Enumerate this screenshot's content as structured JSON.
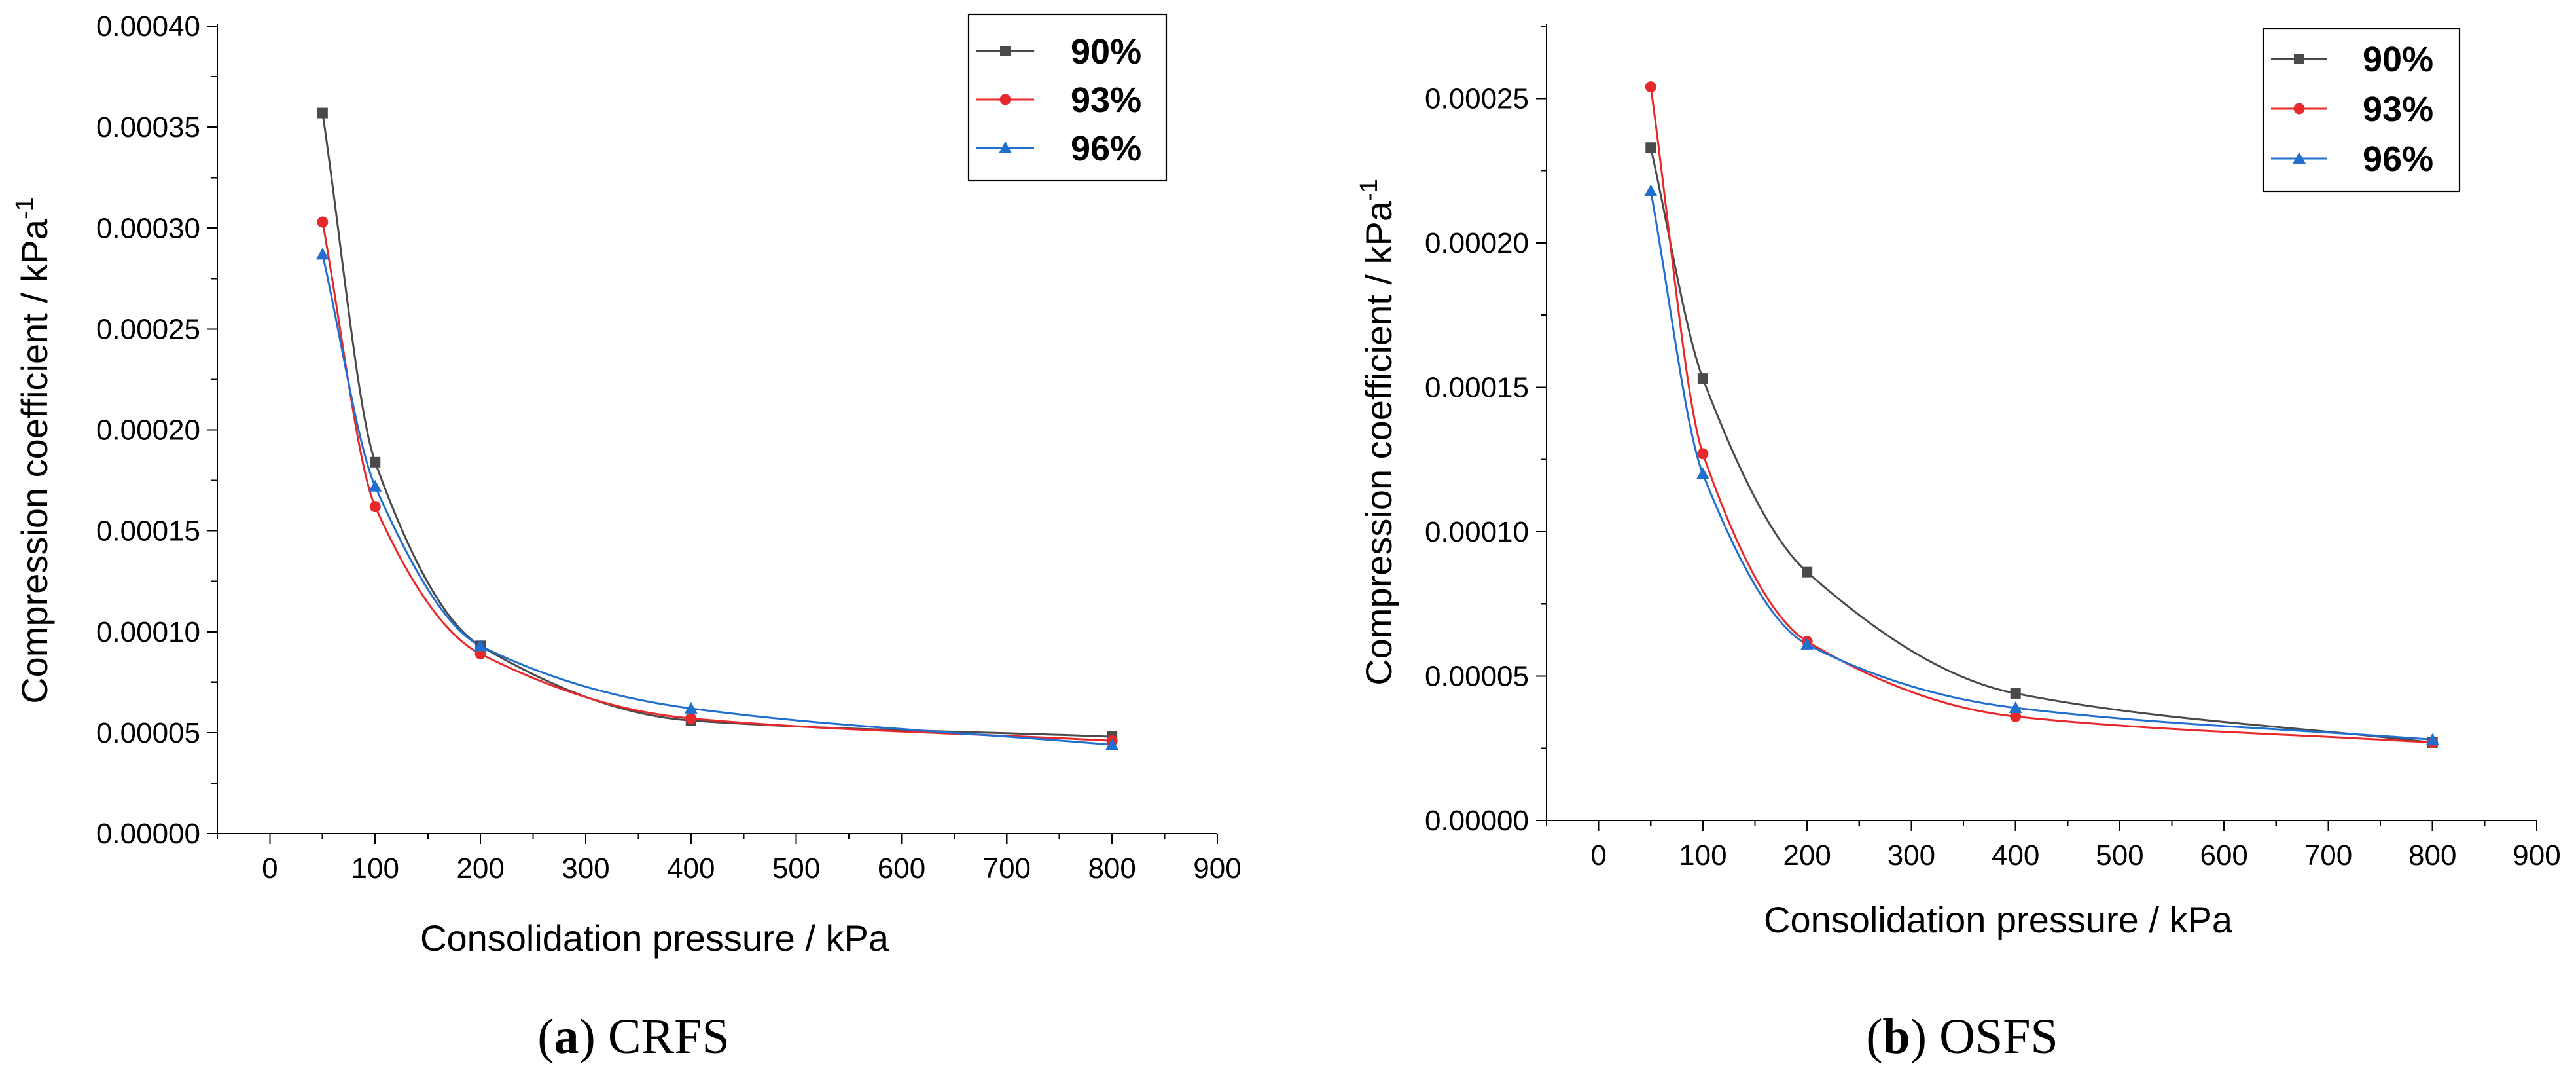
{
  "chart_data": [
    {
      "type": "line",
      "panel_id": "a",
      "caption_letter": "a",
      "caption_text": "CRFS",
      "xlabel": "Consolidation pressure / kPa",
      "ylabel": "Compression coefficient / kPa",
      "ylabel_superscript": "-1",
      "xlim": [
        -50,
        900
      ],
      "ylim": [
        0,
        0.0004
      ],
      "xticks": [
        0,
        100,
        200,
        300,
        400,
        500,
        600,
        700,
        800,
        900
      ],
      "xtick_labels": [
        "0",
        "100",
        "200",
        "300",
        "400",
        "500",
        "600",
        "700",
        "800",
        "900"
      ],
      "yticks": [
        0,
        5e-05,
        0.0001,
        0.00015,
        0.0002,
        0.00025,
        0.0003,
        0.00035,
        0.0004
      ],
      "ytick_labels": [
        "0.00000",
        "0.00005",
        "0.00010",
        "0.00015",
        "0.00020",
        "0.00025",
        "0.00030",
        "0.00035",
        "0.00040"
      ],
      "grid": false,
      "legend_position": "top-right",
      "x": [
        50,
        100,
        200,
        400,
        800
      ],
      "series": [
        {
          "name": "90%",
          "color": "#4a4a4a",
          "marker": "square",
          "values": [
            0.000357,
            0.000184,
            9.3e-05,
            5.6e-05,
            4.8e-05
          ]
        },
        {
          "name": "93%",
          "color": "#e8282b",
          "marker": "circle",
          "values": [
            0.000303,
            0.000162,
            8.9e-05,
            5.7e-05,
            4.6e-05
          ]
        },
        {
          "name": "96%",
          "color": "#1f6fd1",
          "marker": "triangle",
          "values": [
            0.000287,
            0.000172,
            9.3e-05,
            6.2e-05,
            4.4e-05
          ]
        }
      ]
    },
    {
      "type": "line",
      "panel_id": "b",
      "caption_letter": "b",
      "caption_text": "OSFS",
      "xlabel": "Consolidation pressure / kPa",
      "ylabel": "Compression coefficient / kPa",
      "ylabel_superscript": "-1",
      "xlim": [
        -50,
        900
      ],
      "ylim": [
        0,
        0.000275
      ],
      "xticks": [
        0,
        100,
        200,
        300,
        400,
        500,
        600,
        700,
        800,
        900
      ],
      "xtick_labels": [
        "0",
        "100",
        "200",
        "300",
        "400",
        "500",
        "600",
        "700",
        "800",
        "900"
      ],
      "yticks": [
        0,
        5e-05,
        0.0001,
        0.00015,
        0.0002,
        0.00025
      ],
      "ytick_labels": [
        "0.00000",
        "0.00005",
        "0.00010",
        "0.00015",
        "0.00020",
        "0.00025"
      ],
      "grid": false,
      "legend_position": "top-right",
      "x": [
        50,
        100,
        200,
        400,
        800
      ],
      "series": [
        {
          "name": "90%",
          "color": "#4a4a4a",
          "marker": "square",
          "values": [
            0.000233,
            0.000153,
            8.6e-05,
            4.4e-05,
            2.7e-05
          ]
        },
        {
          "name": "93%",
          "color": "#e8282b",
          "marker": "circle",
          "values": [
            0.000254,
            0.000127,
            6.2e-05,
            3.6e-05,
            2.7e-05
          ]
        },
        {
          "name": "96%",
          "color": "#1f6fd1",
          "marker": "triangle",
          "values": [
            0.000218,
            0.00012,
            6.1e-05,
            3.9e-05,
            2.8e-05
          ]
        }
      ]
    }
  ]
}
